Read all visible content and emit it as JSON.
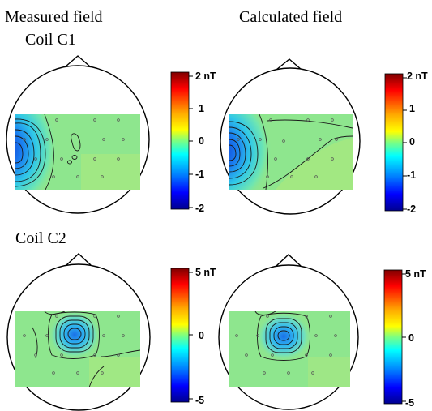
{
  "titles": {
    "measured": "Measured field",
    "calculated": "Calculated field",
    "coil_c1": "Coil C1",
    "coil_c2": "Coil C2"
  },
  "colorbars": {
    "top_left": {
      "labels": [
        "2 nT",
        "1",
        "0",
        "-1",
        "-2"
      ]
    },
    "top_right": {
      "labels": [
        "2 nT",
        "1",
        "0",
        "-1",
        "-2"
      ]
    },
    "bottom_left": {
      "labels": [
        "5 nT",
        "0",
        "-5"
      ]
    },
    "bottom_right": {
      "labels": [
        "5 nT",
        "0",
        "-5"
      ]
    }
  },
  "colors": {
    "jet": [
      "#00008f",
      "#0000ff",
      "#007fff",
      "#00ffff",
      "#7fff7f",
      "#ffff00",
      "#ff7f00",
      "#ff0000",
      "#7f0000"
    ],
    "background_field": "#8ee68e",
    "minimum_field": "#1040e0"
  }
}
